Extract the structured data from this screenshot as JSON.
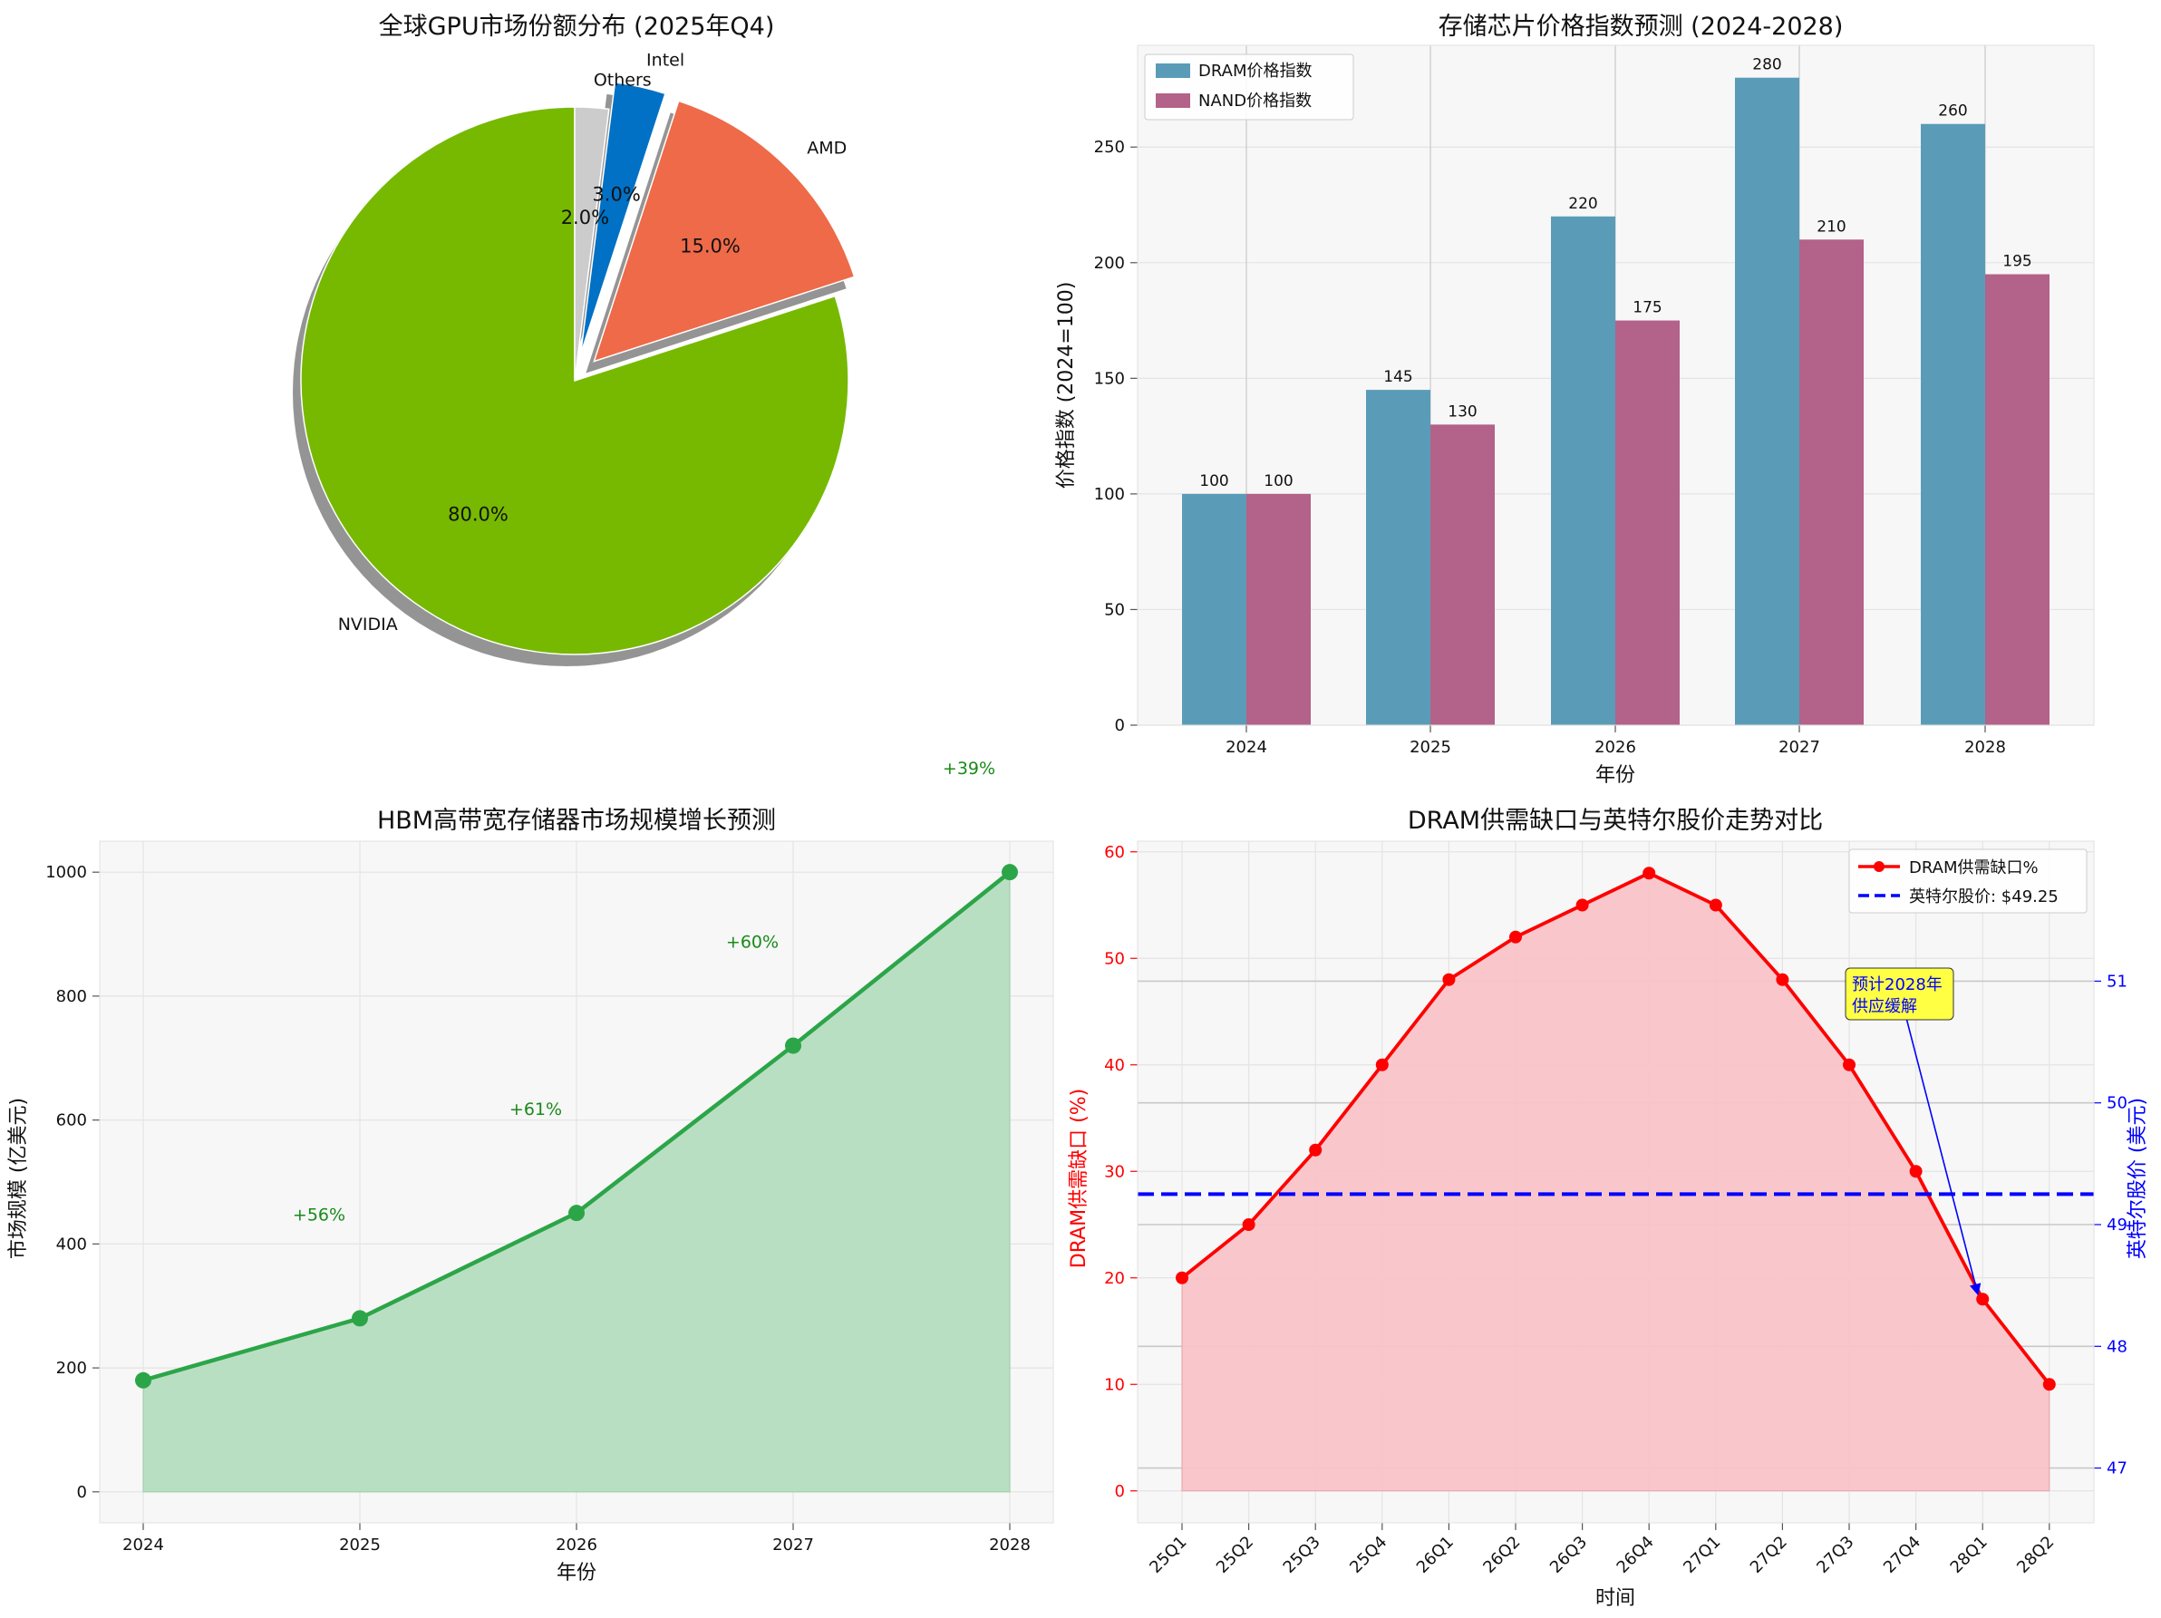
{
  "colors": {
    "nvidia": "#76b900",
    "amd": "#ee6a48",
    "intel": "#0071c5",
    "others": "#cccccc",
    "dram_bar": "#5a9cb8",
    "nand_bar": "#b36289",
    "hbm_line": "#2ca548",
    "hbm_fill": "#b9dfc3",
    "hbm_label": "#198a19",
    "shortage_line": "#ff0000",
    "shortage_fill": "#f9c4c8",
    "intel_line": "#0000ff",
    "annotation_box": "#ffff44",
    "panel_bg": "#f7f7f7"
  },
  "chart_data": [
    {
      "id": "gpu-share",
      "type": "pie",
      "title": "全球GPU市场份额分布 (2025年Q4)",
      "labels": [
        "NVIDIA",
        "AMD",
        "Intel",
        "Others"
      ],
      "values": [
        80.0,
        15.0,
        3.0,
        2.0
      ],
      "pct_labels": [
        "80.0%",
        "15.0%",
        "3.0%",
        "2.0%"
      ],
      "exploded": [
        "AMD",
        "Intel"
      ],
      "shadow": true
    },
    {
      "id": "storage-price-index",
      "type": "bar",
      "title": "存储芯片价格指数预测 (2024-2028)",
      "xlabel": "年份",
      "ylabel": "价格指数 (2024=100)",
      "categories": [
        "2024",
        "2025",
        "2026",
        "2027",
        "2028"
      ],
      "series": [
        {
          "name": "DRAM价格指数",
          "values": [
            100,
            145,
            220,
            280,
            260
          ]
        },
        {
          "name": "NAND价格指数",
          "values": [
            100,
            130,
            175,
            210,
            195
          ]
        }
      ],
      "ylim": [
        0,
        294
      ],
      "yticks": [
        0,
        50,
        100,
        150,
        200,
        250
      ],
      "legend": "top-left"
    },
    {
      "id": "hbm-market",
      "type": "area",
      "title": "HBM高带宽存储器市场规模增长预测",
      "xlabel": "年份",
      "ylabel": "市场规模 (亿美元)",
      "x": [
        "2024",
        "2025",
        "2026",
        "2027",
        "2028"
      ],
      "values": [
        180,
        280,
        450,
        720,
        1000
      ],
      "growth_labels": [
        "+56%",
        "+61%",
        "+60%",
        "+39%"
      ],
      "ylim": [
        -50,
        1050
      ],
      "yticks": [
        0,
        200,
        400,
        600,
        800,
        1000
      ]
    },
    {
      "id": "dram-shortage-vs-intel",
      "type": "line",
      "title": "DRAM供需缺口与英特尔股价走势对比",
      "xlabel": "时间",
      "ylabel": "DRAM供需缺口 (%)",
      "ylabel_right": "英特尔股价 (美元)",
      "x": [
        "25Q1",
        "25Q2",
        "25Q3",
        "25Q4",
        "26Q1",
        "26Q2",
        "26Q3",
        "26Q4",
        "27Q1",
        "27Q2",
        "27Q3",
        "27Q4",
        "28Q1",
        "28Q2"
      ],
      "series": [
        {
          "name": "DRAM供需缺口%",
          "values": [
            20,
            25,
            32,
            40,
            48,
            52,
            55,
            58,
            55,
            48,
            40,
            30,
            18,
            10
          ]
        },
        {
          "name": "英特尔股价: $49.25",
          "axis": "right",
          "constant": 49.25
        }
      ],
      "ylim": [
        -3,
        61
      ],
      "yticks": [
        0,
        10,
        20,
        30,
        40,
        50,
        60
      ],
      "ylim_right": [
        46.55,
        52.15
      ],
      "yticks_right": [
        47,
        48,
        49,
        50,
        51
      ],
      "annotation": {
        "text_line1": "预计2028年",
        "text_line2": "供应缓解",
        "target_x": "28Q1",
        "target_y": 18
      },
      "legend": "top-right"
    }
  ]
}
